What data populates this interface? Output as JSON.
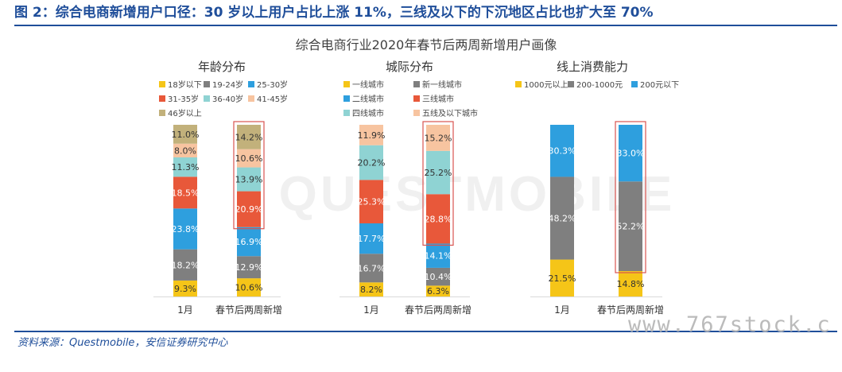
{
  "figure_title": "图 2：综合电商新增用户口径：30 岁以上用户占比上涨 11%，三线及以下的下沉地区占比也扩大至 70%",
  "chart_title": "综合电商行业2020年春节后两周新增用户画像",
  "source": "资料来源：Questmobile，安信证券研究中心",
  "watermark": "www.767stock.c",
  "brand_watermark": "QUESTMOBILE",
  "colors": {
    "title_blue": "#1f4e9a",
    "highlight_border": "#d9534f"
  },
  "chart_data": [
    {
      "type": "bar",
      "stacked": true,
      "title": "年龄分布",
      "categories": [
        "1月",
        "春节后两周新增"
      ],
      "highlight_category": 1,
      "series": [
        {
          "name": "18岁以下",
          "color": "#f5c518",
          "values": [
            9.3,
            10.6
          ],
          "labels": [
            "9.3%",
            "10.6%"
          ]
        },
        {
          "name": "19-24岁",
          "color": "#7f7f7f",
          "values": [
            18.2,
            12.9
          ],
          "labels": [
            "18.2%",
            "12.9%"
          ]
        },
        {
          "name": "25-30岁",
          "color": "#2e9fde",
          "values": [
            23.8,
            16.9
          ],
          "labels": [
            "23.8%",
            "16.9%"
          ]
        },
        {
          "name": "31-35岁",
          "color": "#e8583a",
          "values": [
            18.5,
            20.9
          ],
          "labels": [
            "18.5%",
            "20.9%"
          ]
        },
        {
          "name": "36-40岁",
          "color": "#8fd3d3",
          "values": [
            11.3,
            13.9
          ],
          "labels": [
            "11.3%",
            "13.9%"
          ]
        },
        {
          "name": "41-45岁",
          "color": "#f7c4a0",
          "values": [
            8.0,
            10.6
          ],
          "labels": [
            "8.0%",
            "10.6%"
          ]
        },
        {
          "name": "46岁以上",
          "color": "#c2b17b",
          "values": [
            11.0,
            14.2
          ],
          "labels": [
            "11.0%",
            "14.2%"
          ]
        }
      ]
    },
    {
      "type": "bar",
      "stacked": true,
      "title": "城际分布",
      "categories": [
        "1月",
        "春节后两周新增"
      ],
      "highlight_category": 1,
      "series": [
        {
          "name": "一线城市",
          "color": "#f5c518",
          "values": [
            8.2,
            6.3
          ],
          "labels": [
            "8.2%",
            "6.3%"
          ]
        },
        {
          "name": "新一线城市",
          "color": "#7f7f7f",
          "values": [
            16.7,
            10.4
          ],
          "labels": [
            "16.7%",
            "10.4%"
          ]
        },
        {
          "name": "二线城市",
          "color": "#2e9fde",
          "values": [
            17.7,
            14.1
          ],
          "labels": [
            "17.7%",
            "14.1%"
          ]
        },
        {
          "name": "三线城市",
          "color": "#e8583a",
          "values": [
            25.3,
            28.8
          ],
          "labels": [
            "25.3%",
            "28.8%"
          ]
        },
        {
          "name": "四线城市",
          "color": "#8fd3d3",
          "values": [
            20.2,
            25.2
          ],
          "labels": [
            "20.2%",
            "25.2%"
          ]
        },
        {
          "name": "五线及以下城市",
          "color": "#f7c4a0",
          "values": [
            11.9,
            15.2
          ],
          "labels": [
            "11.9%",
            "15.2%"
          ]
        }
      ]
    },
    {
      "type": "bar",
      "stacked": true,
      "title": "线上消费能力",
      "categories": [
        "1月",
        "春节后两周新增"
      ],
      "highlight_category": 1,
      "series": [
        {
          "name": "1000元以上",
          "color": "#f5c518",
          "values": [
            21.5,
            14.8
          ],
          "labels": [
            "21.5%",
            "14.8%"
          ]
        },
        {
          "name": "200-1000元",
          "color": "#7f7f7f",
          "values": [
            48.2,
            52.2
          ],
          "labels": [
            "48.2%",
            "52.2%"
          ]
        },
        {
          "name": "200元以下",
          "color": "#2e9fde",
          "values": [
            30.3,
            33.0
          ],
          "labels": [
            "30.3%",
            "33.0%"
          ]
        }
      ]
    }
  ]
}
